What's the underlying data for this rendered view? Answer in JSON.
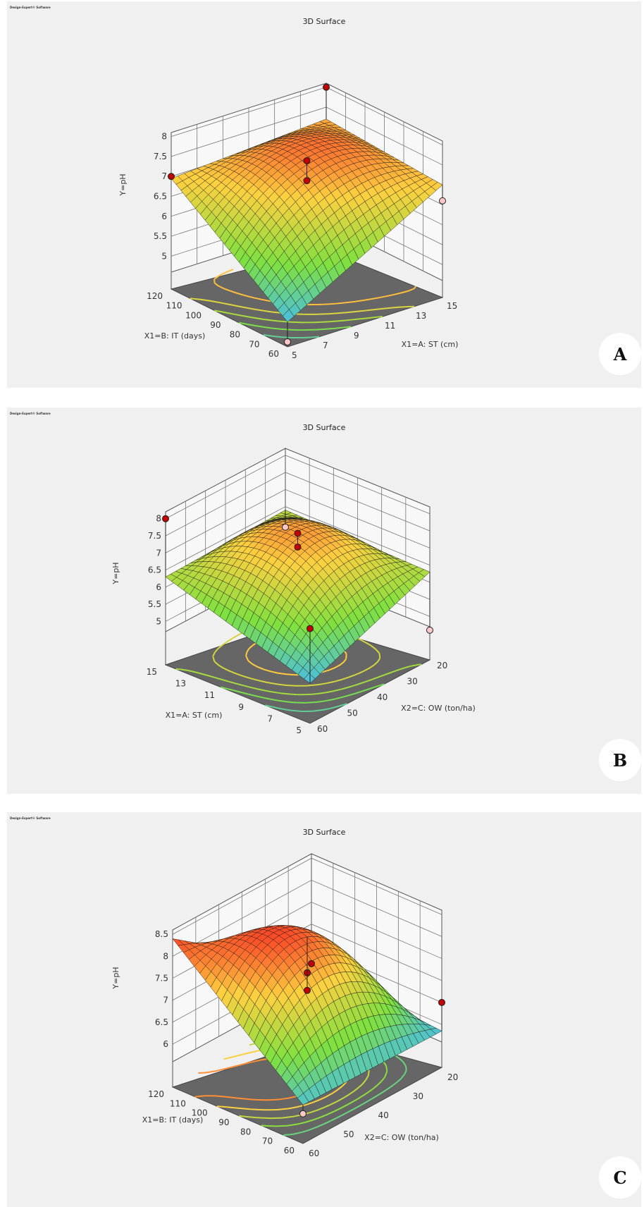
{
  "software_label": "Design-Expert® Software",
  "colors": {
    "surface_low": "#40b8ff",
    "surface_mid": "#7fe040",
    "surface_high": "#ffd040",
    "surface_top": "#ff2020",
    "floor": "#666666",
    "point_above": "#c00000",
    "point_below": "#ffc8c8"
  },
  "chart_data": [
    {
      "type": "surface",
      "panel_label": "A",
      "title": "3D Surface",
      "zlabel": "Y=pH",
      "x1label": "X1=B: IT (days)",
      "x2label": "X1=A: ST (cm)",
      "x1_ticks": [
        "120",
        "110",
        "100",
        "90",
        "80",
        "70",
        "60"
      ],
      "x2_ticks": [
        "5",
        "7",
        "9",
        "11",
        "13",
        "15"
      ],
      "z_ticks": [
        "8",
        "7.5",
        "7",
        "6.5",
        "6",
        "5.5",
        "5"
      ],
      "x1_range": [
        60,
        120
      ],
      "x2_range": [
        5,
        15
      ],
      "z_range": [
        4.6,
        8.1
      ],
      "surface_corners": {
        "x1min_x2min": 4.8,
        "x1min_x2max": 7.0,
        "x1max_x2min": 6.95,
        "x1max_x2max": 7.2
      },
      "peak": 7.5,
      "design_points": [
        {
          "x1": 60,
          "x2": 5,
          "z": 4.3,
          "above": false
        },
        {
          "x1": 120,
          "x2": 5,
          "z": 7.0,
          "above": true
        },
        {
          "x1": 90,
          "x2": 10,
          "z": 7.5,
          "above": true
        },
        {
          "x1": 90,
          "x2": 10,
          "z": 7.0,
          "above": true
        },
        {
          "x1": 60,
          "x2": 15,
          "z": 6.6,
          "above": false
        },
        {
          "x1": 120,
          "x2": 15,
          "z": 8.0,
          "above": true
        }
      ]
    },
    {
      "type": "surface",
      "panel_label": "B",
      "title": "3D Surface",
      "zlabel": "Y=pH",
      "x1label": "X1=A: ST (cm)",
      "x2label": "X2=C: OW (ton/ha)",
      "x1_ticks": [
        "15",
        "13",
        "11",
        "9",
        "7",
        "5"
      ],
      "x2_ticks": [
        "60",
        "50",
        "40",
        "30",
        "20"
      ],
      "z_ticks": [
        "8",
        "7.5",
        "7",
        "6.5",
        "6",
        "5.5",
        "5"
      ],
      "x1_range": [
        5,
        15
      ],
      "x2_range": [
        20,
        60
      ],
      "z_range": [
        4.7,
        8.2
      ],
      "surface_corners": {
        "x1min_x2min": 4.9,
        "x1min_x2max": 6.3,
        "x1max_x2min": 6.3,
        "x1max_x2max": 6.4
      },
      "peak": 7.5,
      "design_points": [
        {
          "x1": 5,
          "x2": 60,
          "z": 4.6,
          "above": false
        },
        {
          "x1": 15,
          "x2": 60,
          "z": 5.9,
          "above": false
        },
        {
          "x1": 10,
          "x2": 40,
          "z": 7.5,
          "above": true
        },
        {
          "x1": 10,
          "x2": 40,
          "z": 7.1,
          "above": true
        },
        {
          "x1": 5,
          "x2": 20,
          "z": 6.5,
          "above": true
        },
        {
          "x1": 15,
          "x2": 20,
          "z": 8.0,
          "above": true
        }
      ]
    },
    {
      "type": "surface",
      "panel_label": "C",
      "title": "3D Surface",
      "zlabel": "Y=pH",
      "x1label": "X1=B: IT (days)",
      "x2label": "X2=C: OW (ton/ha)",
      "x1_ticks": [
        "120",
        "110",
        "100",
        "90",
        "80",
        "70",
        "60"
      ],
      "x2_ticks": [
        "60",
        "50",
        "40",
        "30",
        "20"
      ],
      "z_ticks": [
        "8.5",
        "8",
        "7.5",
        "7",
        "6.5",
        "6"
      ],
      "x1_range": [
        60,
        120
      ],
      "x2_range": [
        20,
        60
      ],
      "z_range": [
        5.6,
        8.6
      ],
      "surface_corners": {
        "x1min_x2min": 5.9,
        "x1min_x2max": 5.85,
        "x1max_x2min": 8.4,
        "x1max_x2max": 6.1
      },
      "peak": 8.4,
      "design_points": [
        {
          "x1": 60,
          "x2": 60,
          "z": 6.5,
          "above": true
        },
        {
          "x1": 120,
          "x2": 60,
          "z": 6.1,
          "above": true
        },
        {
          "x1": 90,
          "x2": 40,
          "z": 7.4,
          "above": true
        },
        {
          "x1": 90,
          "x2": 40,
          "z": 7.0,
          "above": true
        },
        {
          "x1": 60,
          "x2": 20,
          "z": 5.7,
          "above": false
        }
      ]
    }
  ]
}
